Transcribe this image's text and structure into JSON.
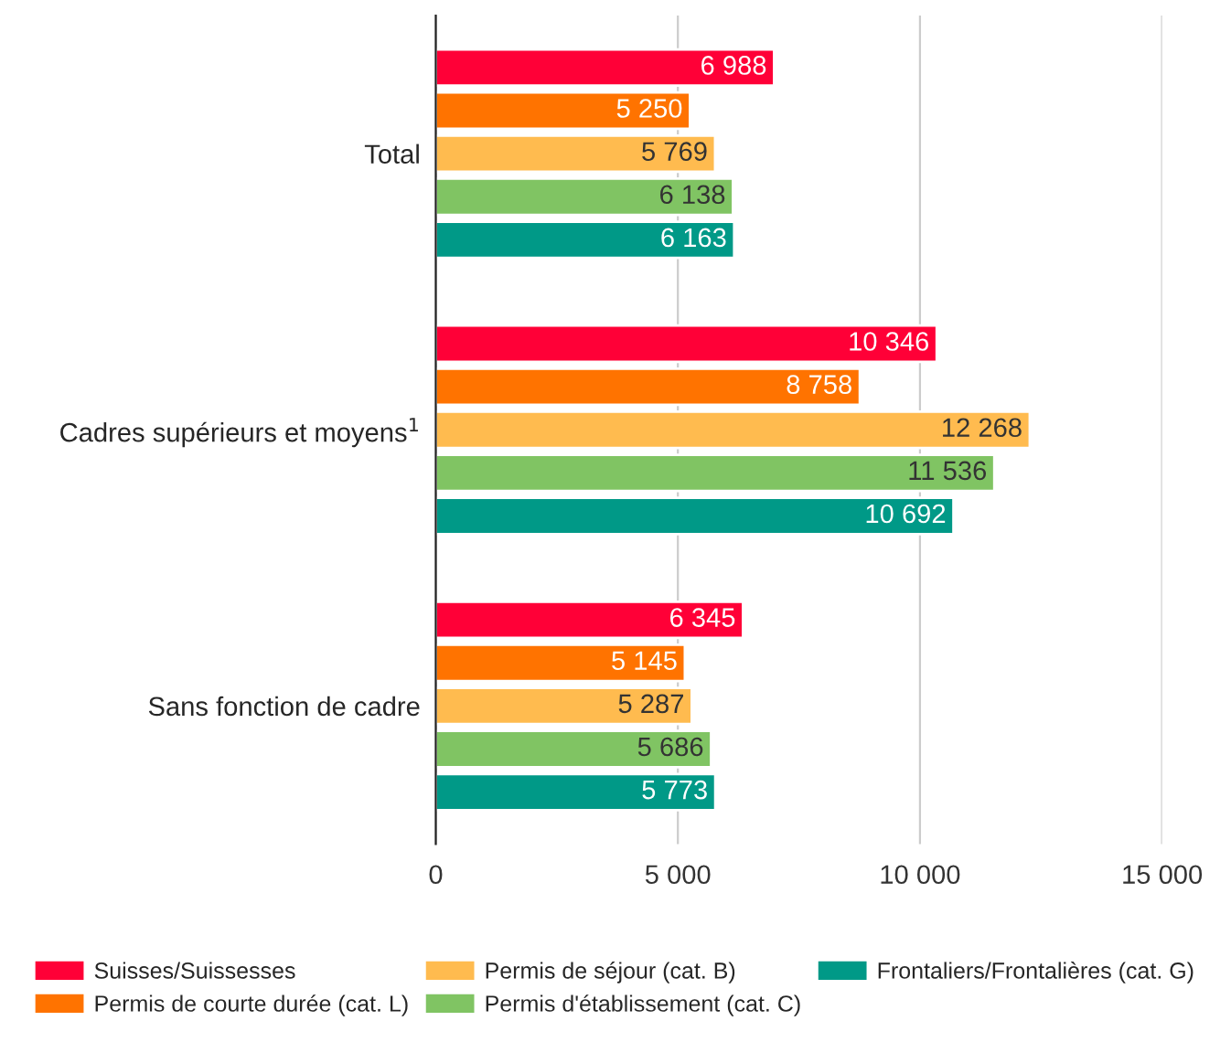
{
  "chart_data": {
    "type": "bar",
    "orientation": "horizontal",
    "categories": [
      "Total",
      "Cadres supérieurs et moyens$^{1}$",
      "Sans fonction de cadre"
    ],
    "series": [
      {
        "name": "Suisses/Suissesses",
        "color": "#ff0037",
        "values": [
          6988,
          10346,
          6345
        ],
        "value_labels": [
          "6 988",
          "10 346",
          "6 345"
        ]
      },
      {
        "name": "Permis de courte durée (cat. L)",
        "color": "#ff7300",
        "values": [
          5250,
          8758,
          5145
        ],
        "value_labels": [
          "5 250",
          "8 758",
          "5 145"
        ]
      },
      {
        "name": "Permis de séjour (cat. B)",
        "color": "#ffbb4f",
        "values": [
          5769,
          12268,
          5287
        ],
        "value_labels": [
          "5 769",
          "12 268",
          "5 287"
        ]
      },
      {
        "name": "Permis d'établissement (cat. C)",
        "color": "#80c463",
        "values": [
          6138,
          11536,
          5686
        ],
        "value_labels": [
          "6 138",
          "11 536",
          "5 686"
        ]
      },
      {
        "name": "Frontaliers/Frontalières (cat. G)",
        "color": "#009987",
        "values": [
          6163,
          10692,
          5773
        ],
        "value_labels": [
          "6 163",
          "10 692",
          "5 773"
        ]
      }
    ],
    "xlim": [
      0,
      15000
    ],
    "xticks": [
      0,
      {
        "value": 5000,
        "label": "5 000"
      },
      {
        "value": 10000,
        "label": "10 000"
      },
      {
        "value": 15000,
        "label": "15 000"
      }
    ],
    "grid": "x",
    "legend": "bottom"
  }
}
